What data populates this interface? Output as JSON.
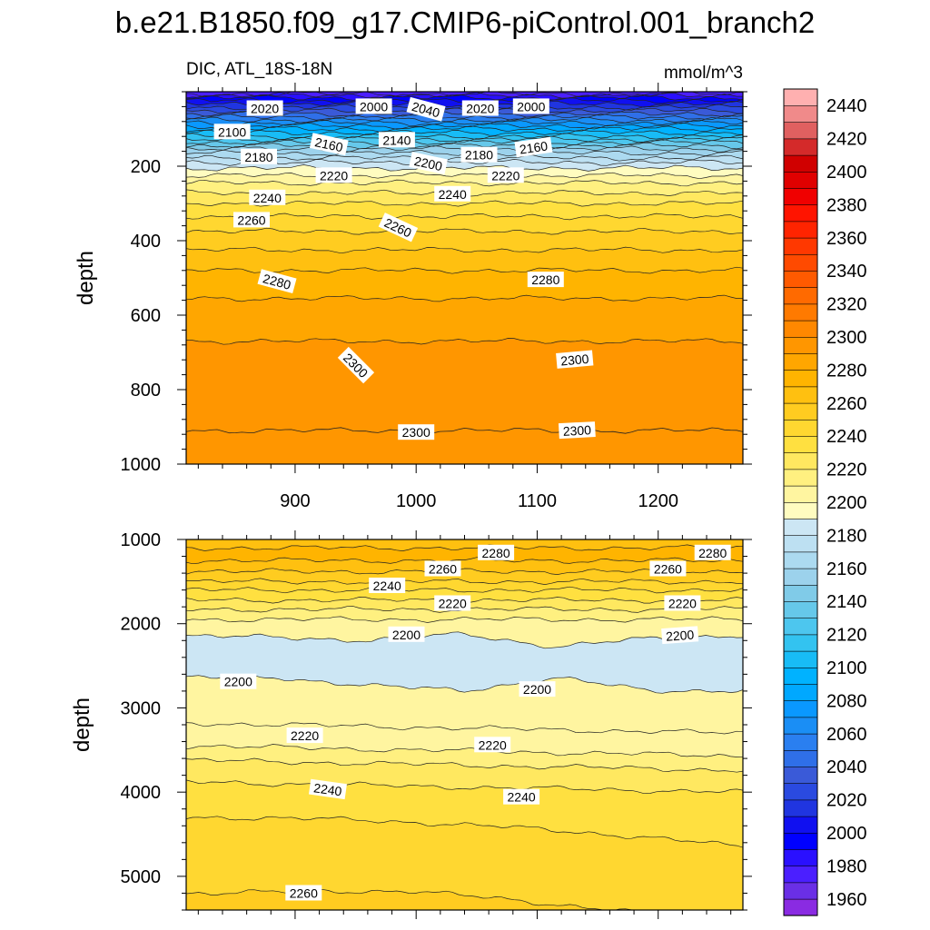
{
  "title": "b.e21.B1850.f09_g17.CMIP6-piControl.001_branch2",
  "chart_data": [
    {
      "type": "heatmap",
      "name": "upper-ocean-section",
      "left_label": "DIC, ATL_18S-18N",
      "right_label": "mmol/m^3",
      "ylabel": "depth",
      "xlabel": "",
      "x_range": [
        810,
        1270
      ],
      "y_range": [
        0,
        1000
      ],
      "y_reversed": true,
      "xticks": [
        900,
        1000,
        1100,
        1200
      ],
      "xtick_labels": [
        "900",
        "1000",
        "1100",
        "1200"
      ],
      "yticks": [
        200,
        400,
        600,
        800,
        1000
      ],
      "ytick_labels": [
        "200",
        "400",
        "600",
        "800",
        "1000"
      ],
      "contour_depths": [
        {
          "value": 1980,
          "depth": 6
        },
        {
          "value": 1990,
          "depth": 10
        },
        {
          "value": 2000,
          "depth": 16
        },
        {
          "value": 2010,
          "depth": 24
        },
        {
          "value": 2020,
          "depth": 33
        },
        {
          "value": 2030,
          "depth": 42
        },
        {
          "value": 2040,
          "depth": 51
        },
        {
          "value": 2050,
          "depth": 60
        },
        {
          "value": 2060,
          "depth": 68
        },
        {
          "value": 2070,
          "depth": 76
        },
        {
          "value": 2080,
          "depth": 84
        },
        {
          "value": 2090,
          "depth": 92
        },
        {
          "value": 2100,
          "depth": 100
        },
        {
          "value": 2110,
          "depth": 110
        },
        {
          "value": 2120,
          "depth": 120
        },
        {
          "value": 2130,
          "depth": 128
        },
        {
          "value": 2140,
          "depth": 136
        },
        {
          "value": 2150,
          "depth": 145
        },
        {
          "value": 2160,
          "depth": 154
        },
        {
          "value": 2170,
          "depth": 165
        },
        {
          "value": 2180,
          "depth": 178
        },
        {
          "value": 2190,
          "depth": 190
        },
        {
          "value": 2200,
          "depth": 205
        },
        {
          "value": 2210,
          "depth": 225
        },
        {
          "value": 2220,
          "depth": 245
        },
        {
          "value": 2230,
          "depth": 272
        },
        {
          "value": 2240,
          "depth": 300
        },
        {
          "value": 2250,
          "depth": 335
        },
        {
          "value": 2260,
          "depth": 375
        },
        {
          "value": 2270,
          "depth": 425
        },
        {
          "value": 2280,
          "depth": 480
        },
        {
          "value": 2290,
          "depth": 555
        },
        {
          "value": 2300,
          "depth": 670
        }
      ],
      "lower_contours": [
        {
          "value": 2300,
          "depth": 910
        }
      ],
      "contour_labels": [
        {
          "text": "2020",
          "x": 875,
          "depth": 45
        },
        {
          "text": "2000",
          "x": 965,
          "depth": 40
        },
        {
          "text": "2040",
          "x": 1008,
          "depth": 48,
          "angle": 15
        },
        {
          "text": "2020",
          "x": 1053,
          "depth": 45
        },
        {
          "text": "2000",
          "x": 1095,
          "depth": 40
        },
        {
          "text": "2100",
          "x": 848,
          "depth": 108
        },
        {
          "text": "2160",
          "x": 928,
          "depth": 142,
          "angle": 12
        },
        {
          "text": "2140",
          "x": 984,
          "depth": 130
        },
        {
          "text": "2180",
          "x": 1052,
          "depth": 170
        },
        {
          "text": "2160",
          "x": 1097,
          "depth": 150,
          "angle": -8
        },
        {
          "text": "2180",
          "x": 870,
          "depth": 175
        },
        {
          "text": "2200",
          "x": 1010,
          "depth": 193,
          "angle": 12
        },
        {
          "text": "2220",
          "x": 932,
          "depth": 225
        },
        {
          "text": "2220",
          "x": 1074,
          "depth": 225
        },
        {
          "text": "2240",
          "x": 877,
          "depth": 285
        },
        {
          "text": "2240",
          "x": 1030,
          "depth": 275
        },
        {
          "text": "2260",
          "x": 864,
          "depth": 345
        },
        {
          "text": "2260",
          "x": 985,
          "depth": 365,
          "angle": 25
        },
        {
          "text": "2280",
          "x": 885,
          "depth": 510,
          "angle": 15
        },
        {
          "text": "2280",
          "x": 1107,
          "depth": 505
        },
        {
          "text": "2300",
          "x": 950,
          "depth": 735,
          "angle": 45
        },
        {
          "text": "2300",
          "x": 1131,
          "depth": 720,
          "angle": -5
        },
        {
          "text": "2300",
          "x": 1000,
          "depth": 915
        },
        {
          "text": "2300",
          "x": 1133,
          "depth": 910,
          "angle": -3
        }
      ]
    },
    {
      "type": "heatmap",
      "name": "deep-ocean-section",
      "ylabel": "depth",
      "xlabel": "",
      "x_range": [
        810,
        1270
      ],
      "y_range": [
        1000,
        5400
      ],
      "y_reversed": true,
      "yticks": [
        1000,
        2000,
        3000,
        4000,
        5000
      ],
      "ytick_labels": [
        "1000",
        "2000",
        "3000",
        "4000",
        "5000"
      ],
      "light_blue_band": {
        "top": [
          2150,
          2160,
          2200,
          2120,
          2280,
          2170,
          2140
        ],
        "bottom": [
          2640,
          2640,
          2740,
          2790,
          2650,
          2790,
          2800
        ]
      },
      "contour_lines": [
        {
          "value": 2290,
          "depth": 1100
        },
        {
          "value": 2280,
          "depth": 1250
        },
        {
          "value": 2270,
          "depth": 1380
        },
        {
          "value": 2260,
          "depth": 1500
        },
        {
          "value": 2250,
          "depth": 1600
        },
        {
          "value": 2240,
          "depth": 1720
        },
        {
          "value": 2230,
          "depth": 1830
        },
        {
          "value": 2220,
          "depth": 1950
        },
        {
          "value": 2210,
          "depth": 3180
        },
        {
          "value": 2220,
          "depth": 3450
        },
        {
          "value": 2230,
          "depth": 3620
        },
        {
          "value": 2240,
          "depth": 3880
        },
        {
          "value": 2250,
          "depth": 4300
        },
        {
          "value": 2260,
          "depth": 5200
        }
      ],
      "contour_labels": [
        {
          "text": "2280",
          "x": 1066,
          "depth": 1160
        },
        {
          "text": "2280",
          "x": 1245,
          "depth": 1160
        },
        {
          "text": "2260",
          "x": 1022,
          "depth": 1350
        },
        {
          "text": "2260",
          "x": 1208,
          "depth": 1350
        },
        {
          "text": "2240",
          "x": 976,
          "depth": 1550
        },
        {
          "text": "2220",
          "x": 1030,
          "depth": 1760
        },
        {
          "text": "2220",
          "x": 1220,
          "depth": 1760
        },
        {
          "text": "2200",
          "x": 992,
          "depth": 2130
        },
        {
          "text": "2200",
          "x": 1218,
          "depth": 2140,
          "angle": -4
        },
        {
          "text": "2200",
          "x": 853,
          "depth": 2690
        },
        {
          "text": "2200",
          "x": 1100,
          "depth": 2780
        },
        {
          "text": "2220",
          "x": 908,
          "depth": 3330
        },
        {
          "text": "2220",
          "x": 1063,
          "depth": 3440
        },
        {
          "text": "2240",
          "x": 927,
          "depth": 3970,
          "angle": 8
        },
        {
          "text": "2240",
          "x": 1087,
          "depth": 4060
        },
        {
          "text": "2260",
          "x": 907,
          "depth": 5200
        }
      ]
    },
    {
      "type": "colorbar",
      "name": "dic-colorbar",
      "levels": [
        1960,
        1970,
        1980,
        1990,
        2000,
        2010,
        2020,
        2030,
        2040,
        2050,
        2060,
        2070,
        2080,
        2090,
        2100,
        2110,
        2120,
        2130,
        2140,
        2150,
        2160,
        2170,
        2180,
        2190,
        2200,
        2210,
        2220,
        2230,
        2240,
        2250,
        2260,
        2270,
        2280,
        2290,
        2300,
        2310,
        2320,
        2330,
        2340,
        2350,
        2360,
        2370,
        2380,
        2390,
        2400,
        2410,
        2420,
        2430,
        2440,
        2450
      ],
      "labels": [
        "1960",
        "1980",
        "2000",
        "2020",
        "2040",
        "2060",
        "2080",
        "2100",
        "2120",
        "2140",
        "2160",
        "2180",
        "2200",
        "2220",
        "2240",
        "2260",
        "2280",
        "2300",
        "2320",
        "2340",
        "2360",
        "2380",
        "2400",
        "2420",
        "2440"
      ],
      "colors": [
        "#8a2be2",
        "#6a2fe6",
        "#4b1fff",
        "#2a10ff",
        "#0000ff",
        "#1010f0",
        "#2035e0",
        "#2a4ae0",
        "#3a5ad8",
        "#2f6fe8",
        "#2a7ff0",
        "#1a8ef5",
        "#0a98ff",
        "#00a8ff",
        "#00b2ff",
        "#18bcf6",
        "#33c3f0",
        "#4dc6ee",
        "#66c8ea",
        "#80cbe8",
        "#9cd2ec",
        "#acdaf0",
        "#bde0f2",
        "#cce6f4",
        "#fffcc0",
        "#fff5a0",
        "#fff080",
        "#ffe860",
        "#ffe040",
        "#ffd730",
        "#ffcc20",
        "#ffc010",
        "#ffb400",
        "#ffa600",
        "#ff9600",
        "#ff8800",
        "#ff7a00",
        "#ff6a00",
        "#ff5a00",
        "#ff4a00",
        "#ff3800",
        "#ff2400",
        "#ff1400",
        "#f00000",
        "#e00000",
        "#d00000",
        "#d42a2a",
        "#e06060",
        "#f08a8a",
        "#ffb0b0"
      ]
    }
  ]
}
